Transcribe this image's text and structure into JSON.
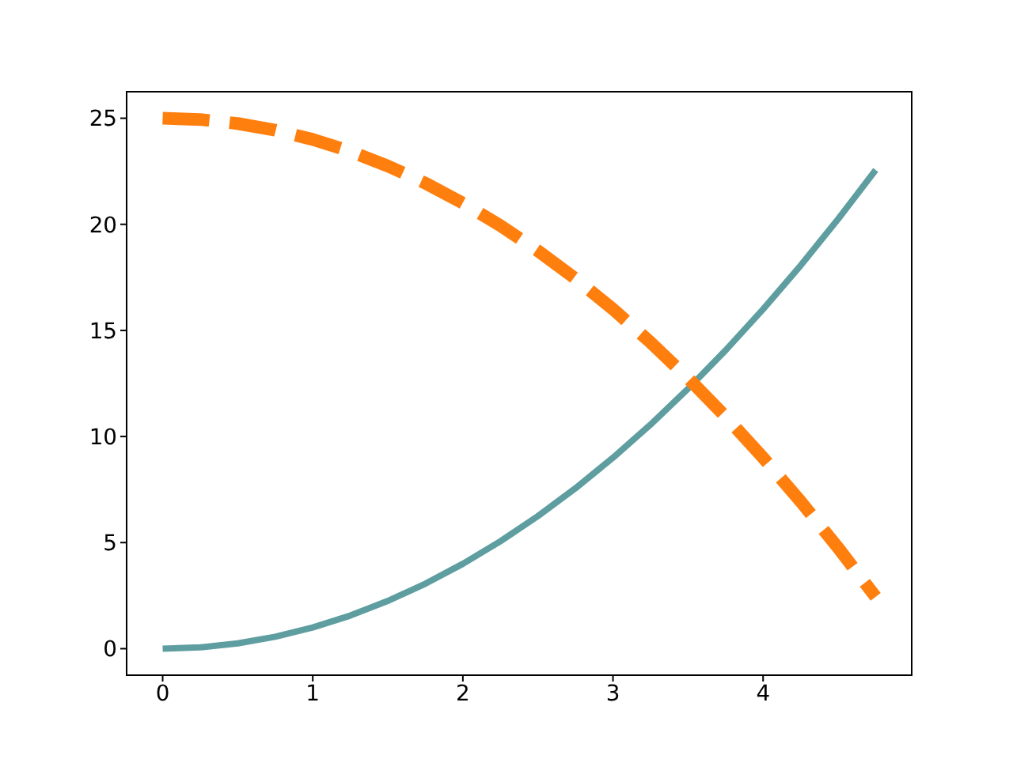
{
  "chart_data": {
    "type": "line",
    "x": [
      0,
      0.25,
      0.5,
      0.75,
      1,
      1.25,
      1.5,
      1.75,
      2,
      2.25,
      2.5,
      2.75,
      3,
      3.25,
      3.5,
      3.75,
      4,
      4.25,
      4.5,
      4.75
    ],
    "series": [
      {
        "color": "#5f9ea0",
        "line_style": "solid",
        "values": [
          0,
          0.06,
          0.25,
          0.56,
          1,
          1.56,
          2.25,
          3.06,
          4,
          5.06,
          6.25,
          7.56,
          9,
          10.56,
          12.25,
          14.06,
          16,
          18.06,
          20.25,
          22.56
        ]
      },
      {
        "color": "#ff7f0e",
        "line_style": "dashed",
        "values": [
          25,
          24.94,
          24.75,
          24.44,
          24,
          23.44,
          22.75,
          21.94,
          21,
          19.94,
          18.75,
          17.44,
          16,
          14.44,
          12.75,
          10.94,
          9,
          6.94,
          4.75,
          2.44
        ]
      }
    ],
    "xlim": [
      -0.24,
      4.99
    ],
    "xticks": [
      0,
      1,
      2,
      3,
      4
    ],
    "ylim": [
      -1.25,
      26.25
    ],
    "yticks": [
      0,
      5,
      10,
      15,
      20,
      25
    ],
    "grid": false,
    "legend": false,
    "marker": "none"
  }
}
